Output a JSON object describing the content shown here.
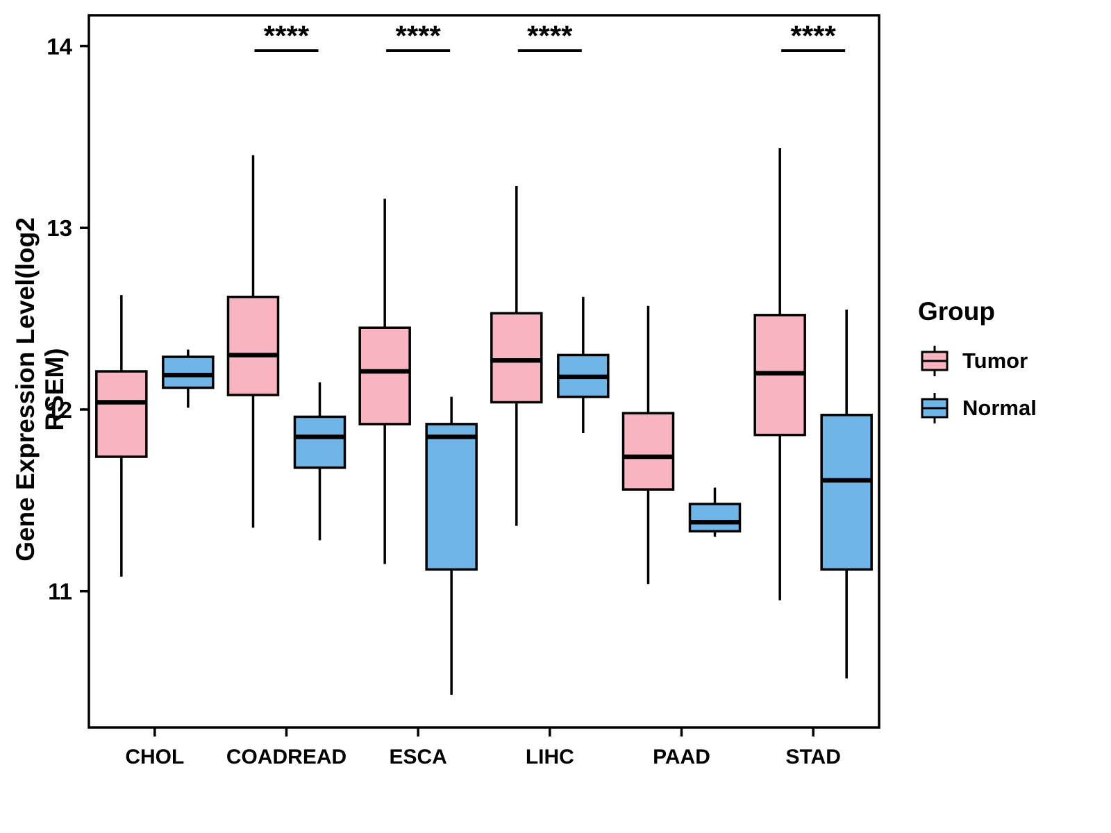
{
  "chart_data": {
    "type": "boxplot",
    "title": "",
    "xlabel": "",
    "ylabel": "Gene Expression Level(log2 RSEM)",
    "legend_title": "Group",
    "ylim": [
      10.25,
      14.17
    ],
    "yticks": [
      11,
      12,
      13,
      14
    ],
    "grid": false,
    "legend_position": "right",
    "categories": [
      "CHOL",
      "COADREAD",
      "ESCA",
      "LIHC",
      "PAAD",
      "STAD"
    ],
    "series": [
      {
        "name": "Tumor",
        "color": "#F9B4C1",
        "boxes": [
          {
            "lo": 11.08,
            "q1": 11.74,
            "med": 12.04,
            "q3": 12.21,
            "hi": 12.63
          },
          {
            "lo": 11.35,
            "q1": 12.08,
            "med": 12.3,
            "q3": 12.62,
            "hi": 13.4
          },
          {
            "lo": 11.15,
            "q1": 11.92,
            "med": 12.21,
            "q3": 12.45,
            "hi": 13.16
          },
          {
            "lo": 11.36,
            "q1": 12.04,
            "med": 12.27,
            "q3": 12.53,
            "hi": 13.23
          },
          {
            "lo": 11.04,
            "q1": 11.56,
            "med": 11.74,
            "q3": 11.98,
            "hi": 12.57
          },
          {
            "lo": 10.95,
            "q1": 11.86,
            "med": 12.2,
            "q3": 12.52,
            "hi": 13.44
          }
        ]
      },
      {
        "name": "Normal",
        "color": "#6FB5E8",
        "boxes": [
          {
            "lo": 12.01,
            "q1": 12.12,
            "med": 12.19,
            "q3": 12.29,
            "hi": 12.33
          },
          {
            "lo": 11.28,
            "q1": 11.68,
            "med": 11.85,
            "q3": 11.96,
            "hi": 12.15
          },
          {
            "lo": 10.43,
            "q1": 11.12,
            "med": 11.85,
            "q3": 11.92,
            "hi": 12.07
          },
          {
            "lo": 11.87,
            "q1": 12.07,
            "med": 12.18,
            "q3": 12.3,
            "hi": 12.62
          },
          {
            "lo": 11.3,
            "q1": 11.33,
            "med": 11.38,
            "q3": 11.48,
            "hi": 11.57
          },
          {
            "lo": 10.52,
            "q1": 11.12,
            "med": 11.61,
            "q3": 11.97,
            "hi": 12.55
          }
        ]
      }
    ],
    "significance": [
      {
        "category": "COADREAD",
        "label": "****"
      },
      {
        "category": "ESCA",
        "label": "****"
      },
      {
        "category": "LIHC",
        "label": "****"
      },
      {
        "category": "STAD",
        "label": "****"
      }
    ]
  }
}
